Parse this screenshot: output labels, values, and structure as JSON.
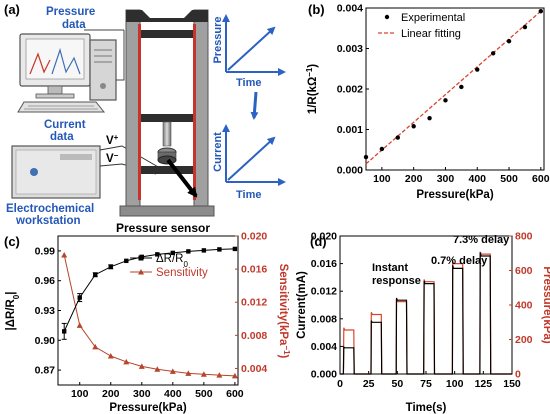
{
  "figure": {
    "panels": {
      "a": {
        "label": "(a)",
        "pressure_data": [
          "Pressure",
          "data"
        ],
        "current_data": [
          "Current",
          "data"
        ],
        "v_plus": "V",
        "v_plus_sup": "+",
        "v_minus": "V",
        "v_minus_sup": "−",
        "workstation": [
          "Electrochemical",
          "workstation"
        ],
        "sensor": "Pressure sensor",
        "top_graph": {
          "y": "Pressure",
          "x": "Time"
        },
        "bottom_graph": {
          "y": "Current",
          "x": "Time"
        },
        "colors": {
          "press_frame": "#9a9a9a",
          "press_red": "#c8342c",
          "plate": "#2e2e2e",
          "arrow": "#2b62c4",
          "monitor_blue": "#3f6fb5"
        }
      },
      "b": {
        "label": "(b)",
        "ylabel_main": "1/R(kΩ",
        "ylabel_sup": "−1",
        "ylabel_end": ")",
        "xlabel": "Pressure(kPa)",
        "legend": {
          "experimental": "Experimental",
          "fitting": "Linear fitting"
        }
      },
      "c": {
        "label": "(c)",
        "ylabel_left": "|ΔR/R",
        "ylabel_left_sub": "0",
        "ylabel_left_end": "|",
        "ylabel_right_main": "Sensitivity(kPa",
        "ylabel_right_sup": "−1",
        "ylabel_right_end": ")",
        "xlabel": "Pressure(kPa)",
        "legend": {
          "dr": "ΔR/R",
          "dr_sub": "0",
          "sens": "Sensitivity"
        }
      },
      "d": {
        "label": "(d)",
        "ylabel_left": "Current(mA)",
        "ylabel_right": "Pressure(kPa)",
        "xlabel": "Time(s)",
        "annotations": {
          "instant": [
            "Instant",
            "response"
          ],
          "delay1": "0.7% delay",
          "delay2": "7.3% delay"
        }
      }
    }
  },
  "chart_data": [
    {
      "panel": "b",
      "type": "scatter",
      "xlim": [
        50,
        610
      ],
      "ylim": [
        0,
        0.004
      ],
      "xticks": [
        100,
        200,
        300,
        400,
        500,
        600
      ],
      "yticks": [
        0.0,
        0.001,
        0.002,
        0.003,
        0.004
      ],
      "ytick_labels": [
        "0.000",
        "0.001",
        "0.002",
        "0.003",
        "0.004"
      ],
      "legend_position": "top-left",
      "series": [
        {
          "name": "Experimental",
          "kind": "points",
          "color": "#000000",
          "x": [
            50,
            100,
            150,
            200,
            250,
            300,
            350,
            400,
            450,
            500,
            550,
            600
          ],
          "y": [
            0.00032,
            0.00052,
            0.0008,
            0.00108,
            0.00128,
            0.00172,
            0.00205,
            0.00248,
            0.00288,
            0.00318,
            0.00353,
            0.00392
          ]
        },
        {
          "name": "Linear fitting",
          "kind": "dashed-line",
          "color": "#d9462f",
          "x": [
            50,
            600
          ],
          "y": [
            0.00015,
            0.00392
          ]
        }
      ]
    },
    {
      "panel": "c",
      "type": "line",
      "xlim": [
        30,
        610
      ],
      "xticks": [
        100,
        200,
        300,
        400,
        500,
        600
      ],
      "ylim_left": [
        0.855,
        1.005
      ],
      "yticks_left": [
        0.87,
        0.9,
        0.93,
        0.96,
        0.99
      ],
      "ytick_labels_left": [
        "0.87",
        "0.90",
        "0.93",
        "0.96",
        "0.99"
      ],
      "ylim_right": [
        0.002,
        0.02
      ],
      "yticks_right": [
        0.004,
        0.008,
        0.012,
        0.016,
        0.02
      ],
      "ytick_labels_right": [
        "0.004",
        "0.008",
        "0.012",
        "0.016",
        "0.020"
      ],
      "legend_position": "top-right",
      "series": [
        {
          "name": "ΔR/R0",
          "axis": "left",
          "color": "#000000",
          "marker": "square",
          "x": [
            50,
            100,
            150,
            200,
            250,
            300,
            350,
            400,
            450,
            500,
            550,
            600
          ],
          "y": [
            0.909,
            0.943,
            0.966,
            0.974,
            0.98,
            0.984,
            0.9865,
            0.988,
            0.9895,
            0.9905,
            0.9915,
            0.992
          ],
          "error": [
            0.008,
            0.004,
            0.002,
            0.002,
            0.001,
            0.001,
            0.001,
            0.001,
            0.001,
            0.001,
            0.001,
            0.001
          ]
        },
        {
          "name": "Sensitivity",
          "axis": "right",
          "color": "#b6452c",
          "marker": "triangle",
          "x": [
            50,
            100,
            150,
            200,
            250,
            300,
            350,
            400,
            450,
            500,
            550,
            600
          ],
          "y": [
            0.0177,
            0.0092,
            0.0066,
            0.0055,
            0.0048,
            0.00425,
            0.0039,
            0.00365,
            0.0034,
            0.0033,
            0.0032,
            0.0031
          ]
        }
      ]
    },
    {
      "panel": "d",
      "type": "line",
      "xlim": [
        0,
        150
      ],
      "xticks": [
        0,
        25,
        50,
        75,
        100,
        125,
        150
      ],
      "ylim_left": [
        0,
        0.02
      ],
      "yticks_left": [
        0.0,
        0.004,
        0.008,
        0.012,
        0.016,
        0.02
      ],
      "ytick_labels_left": [
        "0.000",
        "0.004",
        "0.008",
        "0.012",
        "0.016",
        "0.020"
      ],
      "ylim_right": [
        0,
        800
      ],
      "yticks_right": [
        0,
        200,
        400,
        600,
        800
      ],
      "series": [
        {
          "name": "Current",
          "axis": "left",
          "color": "#000000",
          "pulses": [
            {
              "start": 3,
              "end": 12,
              "level": 0.0038
            },
            {
              "start": 27,
              "end": 36,
              "level": 0.0075
            },
            {
              "start": 49,
              "end": 58,
              "level": 0.0107
            },
            {
              "start": 73,
              "end": 82,
              "level": 0.0131
            },
            {
              "start": 98,
              "end": 107,
              "level": 0.0153
            },
            {
              "start": 122,
              "end": 131,
              "level": 0.0171
            }
          ],
          "baseline": 0.0
        },
        {
          "name": "Pressure",
          "axis": "right",
          "color": "#d9462f",
          "pulses": [
            {
              "start": 3,
              "end": 12,
              "level": 255,
              "peak": 268
            },
            {
              "start": 27,
              "end": 36,
              "level": 345,
              "peak": 358
            },
            {
              "start": 49,
              "end": 58,
              "level": 420,
              "peak": 433
            },
            {
              "start": 73,
              "end": 82,
              "level": 535,
              "peak": 548
            },
            {
              "start": 98,
              "end": 107,
              "level": 640,
              "peak": 652
            },
            {
              "start": 122,
              "end": 131,
              "level": 695,
              "peak": 708
            }
          ],
          "baseline": 0
        }
      ]
    }
  ]
}
